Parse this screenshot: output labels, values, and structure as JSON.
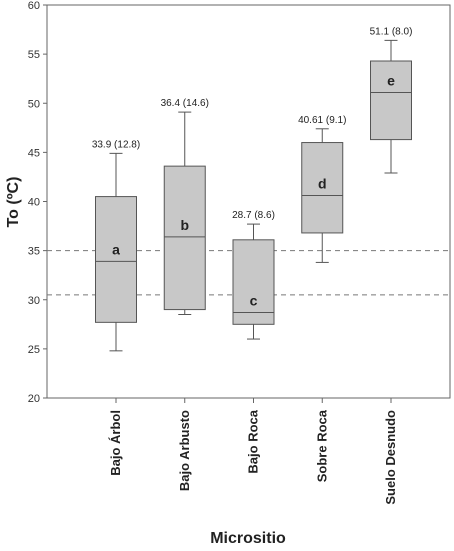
{
  "chart_data": {
    "type": "box",
    "xlabel": "Micrositio",
    "ylabel": "To (ºC)",
    "ylim": [
      20,
      60
    ],
    "yticks": [
      20,
      25,
      30,
      35,
      40,
      45,
      50,
      55,
      60
    ],
    "grid": false,
    "reference_lines": [
      {
        "y": 35.0,
        "style": "dashed"
      },
      {
        "y": 30.5,
        "style": "dashed"
      }
    ],
    "categories": [
      "Bajo Árbol",
      "Bajo Arbusto",
      "Bajo Roca",
      "Sobre Roca",
      "Suelo Desnudo"
    ],
    "boxes": [
      {
        "category": "Bajo Árbol",
        "min": 24.8,
        "q1": 27.7,
        "median": 33.9,
        "q3": 40.5,
        "max": 44.9,
        "label": "33.9 (12.8)",
        "group": "a"
      },
      {
        "category": "Bajo Arbusto",
        "min": 28.5,
        "q1": 29.0,
        "median": 36.4,
        "q3": 43.6,
        "max": 49.1,
        "label": "36.4 (14.6)",
        "group": "b"
      },
      {
        "category": "Bajo Roca",
        "min": 26.0,
        "q1": 27.5,
        "median": 28.7,
        "q3": 36.1,
        "max": 37.7,
        "label": "28.7 (8.6)",
        "group": "c"
      },
      {
        "category": "Sobre Roca",
        "min": 33.8,
        "q1": 36.8,
        "median": 40.61,
        "q3": 46.0,
        "max": 47.4,
        "label": "40.61 (9.1)",
        "group": "d"
      },
      {
        "category": "Suelo Desnudo",
        "min": 42.9,
        "q1": 46.3,
        "median": 51.1,
        "q3": 54.3,
        "max": 56.4,
        "label": "51.1 (8.0)",
        "group": "e"
      }
    ],
    "colors": {
      "box_fill": "#c8c8c8",
      "stroke": "#555555",
      "reference_line": "#777777",
      "frame": "#666666"
    }
  }
}
